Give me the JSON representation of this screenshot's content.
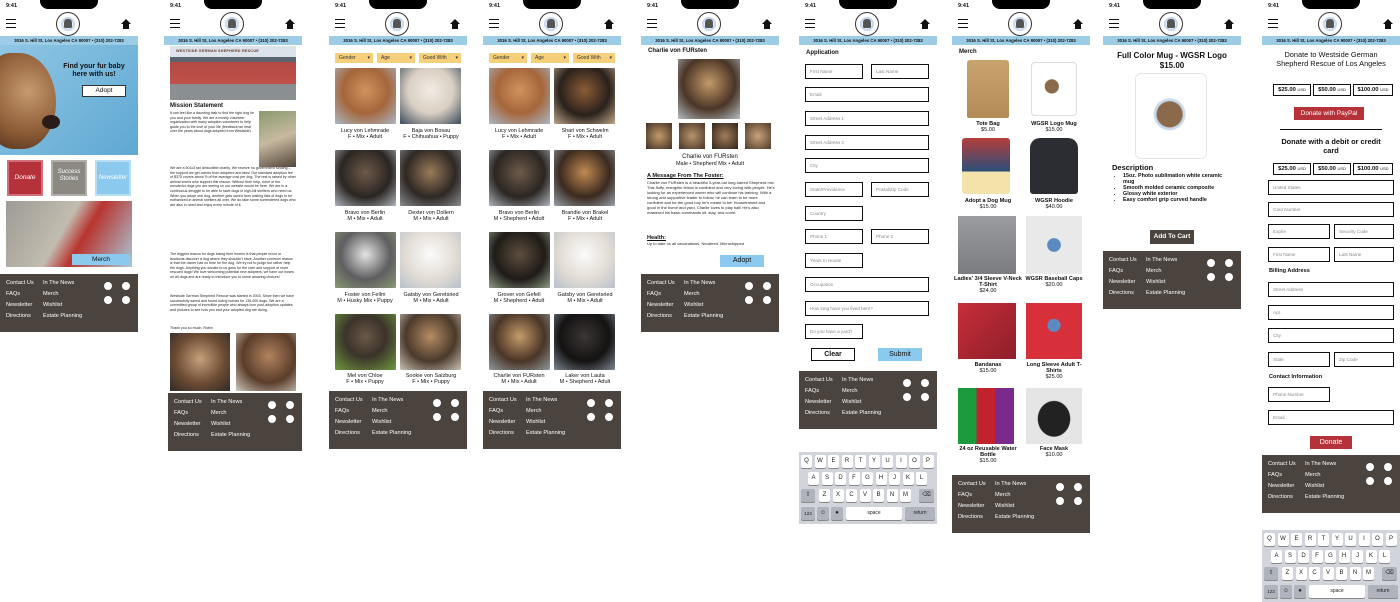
{
  "status_time": "9:41",
  "address_bar": "3016 S. Hill St, Los Angeles CA 90007 • (310) 202-7283",
  "footer": {
    "contact": "Contact Us",
    "faqs": "FAQs",
    "newsletter": "Newsletter",
    "directions": "Directions",
    "news": "In The News",
    "merch": "Merch",
    "wishlist": "Wishlist",
    "estate": "Estate Planning",
    "copyright": "Copyright © 2020-2025 Westside German Shepherd Rescue of Los Angeles"
  },
  "home": {
    "hero_text": "Find your fur baby here with us!",
    "adopt_btn": "Adopt",
    "donate": "Donate",
    "success": "Success Stories",
    "newsletter": "Newsletter",
    "merch_btn": "Merch",
    "colors": {
      "donate": "#b5323b",
      "success": "#8c8983",
      "newsletter": "#8cc9ee"
    }
  },
  "about": {
    "sign": "WESTSIDE GERMAN SHEPHERD RESCUE",
    "heading": "Mission Statement",
    "p1": "It can feel like a daunting task to find the right dog for you and your family. We are a mostly volunteer organization with many adoption volunteers to help guide you to the love of your life (feedback we hear over the years about dogs adopted from Westside).",
    "p2": "We are a 501c3 tax deductible charity. We receive no government funding – the support we get comes from adopters and fans! Our standard adoption fee of $375 covers about ½ of the average cost per dog. The rest is raised by other animal lovers who support this rescue. Without their help, none of the wonderful dogs you are seeing on our website would be here. We are in a continuous struggle to be able to save dogs in high-kill shelters who need us. When you adopt one dog, another gets saved from waiting lists of dogs to be euthanized in animal shelters all over. We do take some surrendered dogs who are also in need and enjoy every minute of it.",
    "p3": "The biggest reason for dogs losing their homes is that people move or landlords discover a dog where they shouldn't have. Another common reason is that the owner has no time for the dog. We try not to judge but rather help the dogs. Anything you donate to us goes for the care and support of more rescued dogs! We love welcoming potential new adopters, we have our noses on all dogs and are ready to introduce you to some amazing choices!",
    "p4": "Westside German Shepherd Rescue was started in 2003. Since then we have successfully saved and found loving homes for 135,000 dogs. We are a committed group of incredible people who always love post-adoption updates and pictures to see how you and your adopted dog are doing.",
    "thanks": "Thank you so much, Robin"
  },
  "filters": [
    "Gender",
    "Age",
    "Good With"
  ],
  "dogs1": [
    {
      "name": "Lucy von Lehmrade",
      "info": "F • Mix • Adult"
    },
    {
      "name": "Baja von Bosau",
      "info": "F • Chihuahua • Puppy"
    },
    {
      "name": "Bravo von Berlin",
      "info": "M • Mix • Adult"
    },
    {
      "name": "Dexter von Dollern",
      "info": "M • Mix • Adult"
    },
    {
      "name": "Foster von Fellm",
      "info": "M • Husky Mix • Puppy"
    },
    {
      "name": "Gatsby von Geretsried",
      "info": "M • Mix • Adult"
    },
    {
      "name": "Mel von Chloe",
      "info": "F • Mix • Puppy"
    },
    {
      "name": "Sookie von Salzburg",
      "info": "F • Mix • Puppy"
    }
  ],
  "dogs2": [
    {
      "name": "Lucy von Lehmrade",
      "info": "F • Mix • Adult"
    },
    {
      "name": "Shari von Schwelm",
      "info": "F • Mix • Adult"
    },
    {
      "name": "Bravo von Berlin",
      "info": "M • Shepherd • Adult"
    },
    {
      "name": "Brandie von Brakel",
      "info": "F • Mix • Adult"
    },
    {
      "name": "Grover von Gefell",
      "info": "M • Shepherd • Adult"
    },
    {
      "name": "Gatsby von Geretsried",
      "info": "M • Mix • Adult"
    },
    {
      "name": "Charlie von FURsten",
      "info": "M • Mix • Adult"
    },
    {
      "name": "Laker von Lauta",
      "info": "M • Shepherd • Adult"
    }
  ],
  "detail": {
    "title": "Charlie von FURsten",
    "name": "Charlie von FURsten",
    "info": "Male • Shepherd Mix • Adult",
    "msg_h": "A Message From The Foster:",
    "msg": "Charlie von FURsten is a beautiful 3-year-old long-haired Shepherd mix. This fluffy, energetic fellow is confident and very loving with people. He's looking for an experienced owner who will continue his training. With a strong and supportive leader to follow, he can learn to be more confident and be the good boy he's meant to be! Housetrained and good in the home and yard, Charlie loves to play ball! He's also mastered his basic commands sit, stay, and come.",
    "health_h": "Health:",
    "health": "Up to date on all vaccinations. Neutered. Microchipped",
    "adopt_btn": "Adopt"
  },
  "app": {
    "title": "Application",
    "fields": [
      "First Name",
      "Last Name",
      "Email",
      "Street Address 1",
      "Street Address 2",
      "City",
      "State/Providence",
      "Postal/Zip Code",
      "Country",
      "Phone 1",
      "Phone 2",
      "Years In House",
      "Occupation",
      "How long have you lived here?",
      "Do you have a yard?"
    ],
    "clear": "Clear",
    "submit": "Submit"
  },
  "keyboard": {
    "row1": [
      "Q",
      "W",
      "E",
      "R",
      "T",
      "Y",
      "U",
      "I",
      "O",
      "P"
    ],
    "row2": [
      "A",
      "S",
      "D",
      "F",
      "G",
      "H",
      "J",
      "K",
      "L"
    ],
    "row3": [
      "Z",
      "X",
      "C",
      "V",
      "B",
      "N",
      "M"
    ],
    "num": "123",
    "space": "space",
    "ret": "return"
  },
  "merch": {
    "title": "Merch",
    "items": [
      {
        "name": "Tote Bag",
        "price": "$5.00"
      },
      {
        "name": "WGSR Logo Mug",
        "price": "$15.00"
      },
      {
        "name": "Adopt a Dog Mug",
        "price": "$15.00"
      },
      {
        "name": "WGSR Hoodie",
        "price": "$40.00"
      },
      {
        "name": "Ladies' 3/4 Sleeve V-Neck T-Shirt",
        "price": "$24.00"
      },
      {
        "name": "WGSR Baseball Caps",
        "price": "$20.00"
      },
      {
        "name": "Bandanas",
        "price": "$15.00"
      },
      {
        "name": "Long Sleeve Adult T-Shirts",
        "price": "$25.00"
      },
      {
        "name": "24 oz Reusable Water Bottle",
        "price": "$15.00"
      },
      {
        "name": "Face Mask",
        "price": "$10.00"
      }
    ]
  },
  "product": {
    "title": "Full Color Mug - WGSR Logo",
    "price": "$15.00",
    "desc_h": "Description",
    "bullets": [
      "15oz. Photo sublimation white ceramic mug",
      "Smooth molded ceramic composite",
      "Glossy white exterior",
      "Easy comfort grip curved handle"
    ],
    "btn": "Add To Cart"
  },
  "donate": {
    "title": "Donate to Westside German Shepherd Rescue of Los Angeles",
    "amounts": [
      "$25.00",
      "$50.00",
      "$100.00"
    ],
    "usd": "USD",
    "paypal": "Donate with PayPal",
    "card_h": "Donate with a debit or credit card",
    "card_fields": [
      "United States",
      "Card Number",
      "Expire",
      "Security Code",
      "First Name",
      "Last Name"
    ],
    "billing": "Billing Address",
    "bill_fields": [
      "Street Address",
      "Apt.",
      "City",
      "State",
      "Zip Code"
    ],
    "contact": "Contact Information",
    "contact_fields": [
      "Phone Number",
      "Email"
    ],
    "btn": "Donate"
  }
}
